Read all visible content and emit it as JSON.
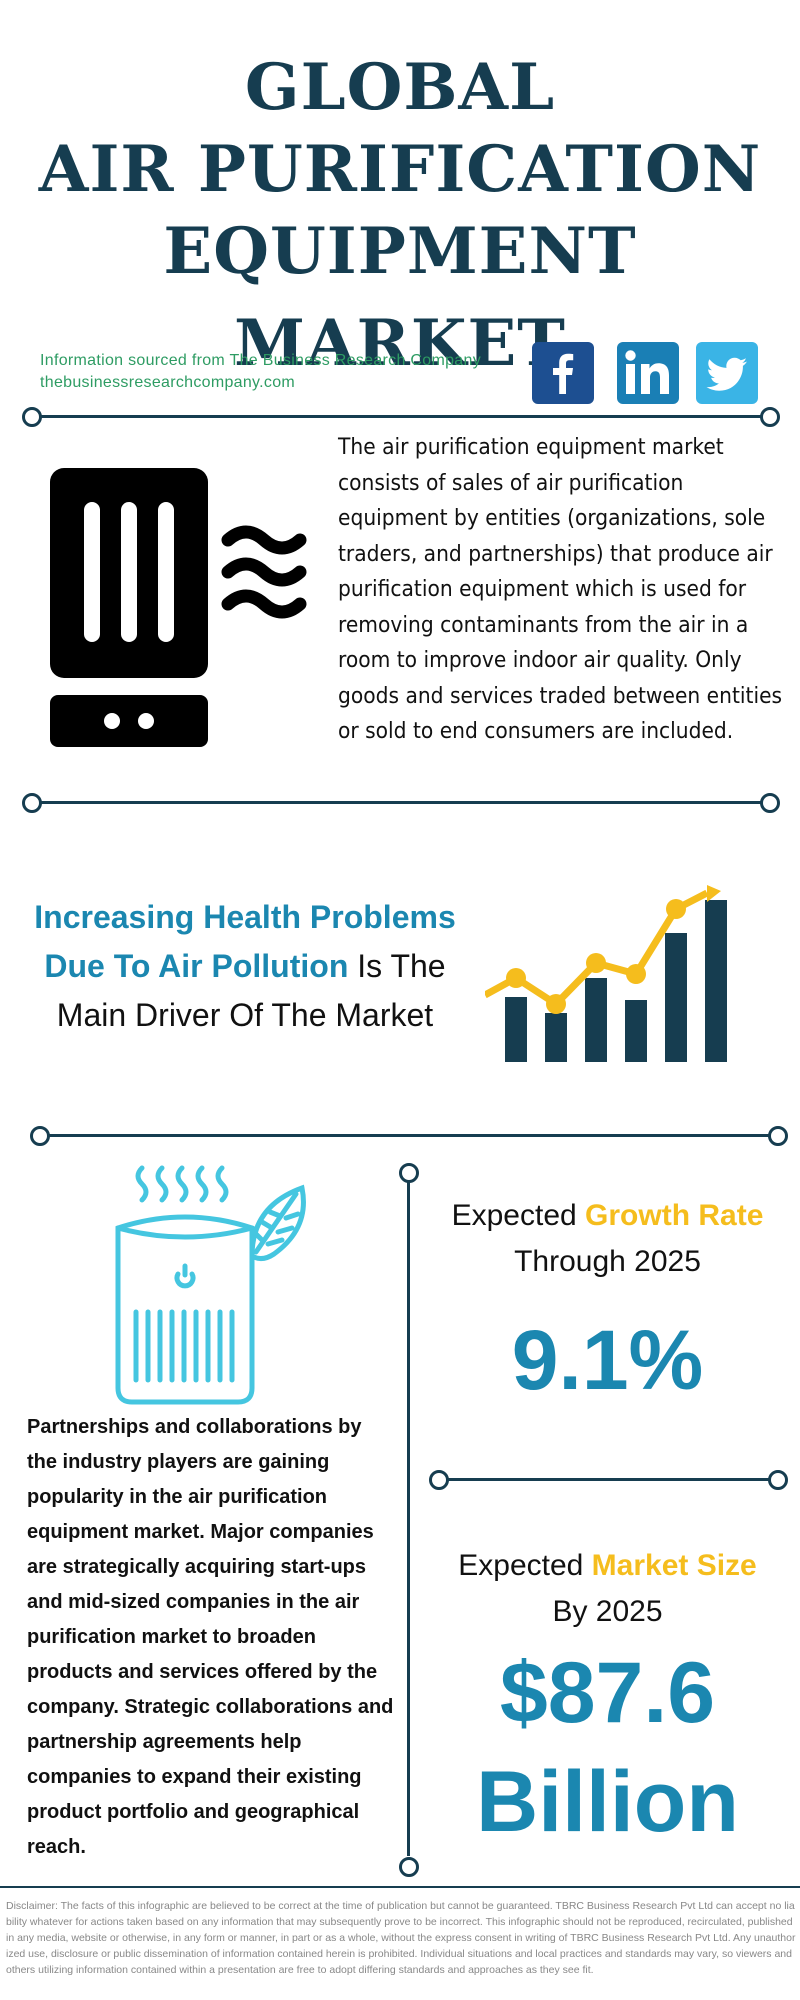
{
  "header": {
    "title_line1": "GLOBAL",
    "title_line2": "AIR PURIFICATION",
    "title_line3": "EQUIPMENT MARKET"
  },
  "source": {
    "line1": "Information sourced from The Business Research Company",
    "line2": "thebusinessresearchcompany.com"
  },
  "social": {
    "facebook_icon": "facebook-icon",
    "linkedin_icon": "linkedin-icon",
    "twitter_icon": "twitter-icon",
    "facebook_color": "#1d4f91",
    "linkedin_color": "#1a7fb5",
    "twitter_color": "#3ab4e6"
  },
  "intro": {
    "description": "The air purification equipment market consists of sales of air purification equipment by entities (organizations, sole traders, and partnerships) that produce air purification equipment which is used for removing contaminants from the air in a room to improve indoor air quality. Only goods and services traded between entities or sold to end consumers are included."
  },
  "driver": {
    "highlight": "Increasing Health Problems Due To Air Pollution",
    "rest": " Is The Main Driver Of The Market"
  },
  "partnerships": {
    "text": "Partnerships and collaborations by the industry players are gaining popularity in the air purification equipment market. Major companies are strategically acquiring start-ups and mid-sized companies in the air purification market to broaden products and services offered by the company. Strategic collaborations and partnership agreements help companies to expand their existing product portfolio and geographical reach."
  },
  "growth": {
    "label_prefix": "Expected ",
    "label_highlight": "Growth Rate",
    "label_suffix": "Through 2025",
    "value": "9.1%"
  },
  "market_size": {
    "label_prefix": "Expected ",
    "label_highlight": "Market Size",
    "label_suffix": "By 2025",
    "value_line1": "$87.6",
    "value_line2": "Billion"
  },
  "disclaimer": "Disclaimer: The facts of this infographic are believed to be correct at the time of publication but cannot be guaranteed. TBRC Business Research Pvt Ltd can accept no liability whatever for actions taken based on any information that may subsequently prove to be incorrect. This infographic should not be reproduced, recirculated, published in any media, website or otherwise, in any form or manner, in part or as a whole, without the express consent in writing of TBRC Business Research Pvt Ltd. Any unauthorized use, disclosure or public dissemination of information contained herein is prohibited. Individual situations and local practices and standards may vary, so viewers and others utilizing information contained within a presentation are free to adopt differing standards and approaches as they see fit.",
  "colors": {
    "navy": "#163d50",
    "accent_blue": "#1b87b0",
    "yellow": "#f5bd1d",
    "green": "#2e9c63",
    "cyan_icon": "#45c6e0"
  }
}
